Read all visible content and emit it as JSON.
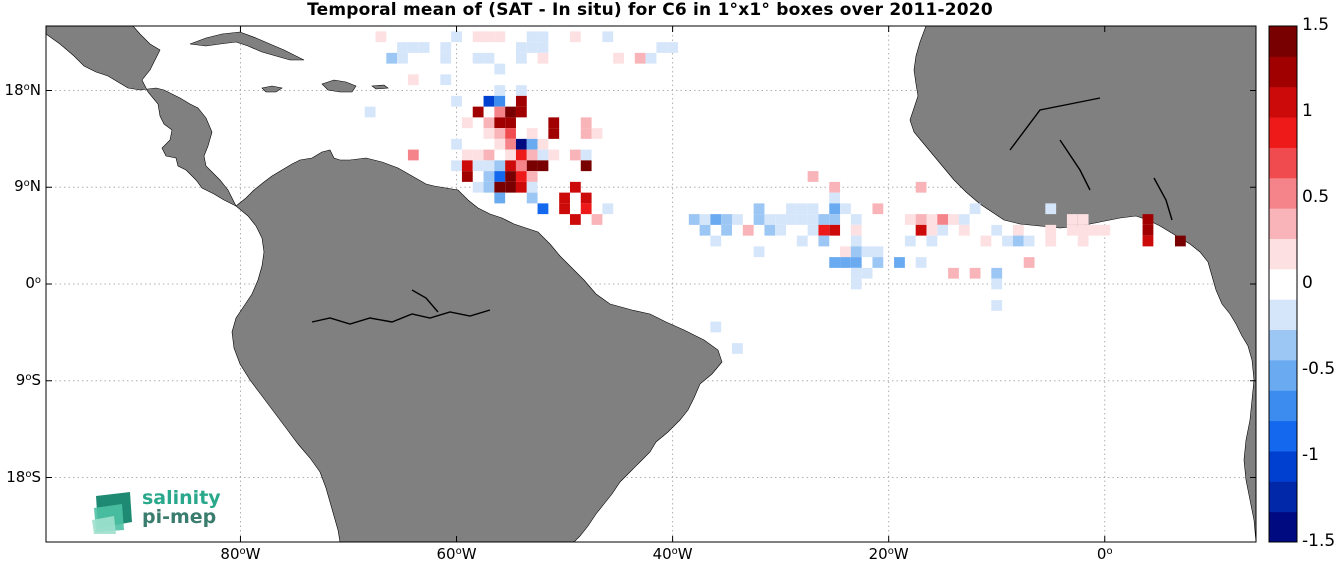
{
  "title": "Temporal mean of (SAT - In situ) for C6 in 1°x1° boxes over 2011-2020",
  "lat_ticks": [
    {
      "value": 18,
      "deg": "18",
      "hem": "N"
    },
    {
      "value": 9,
      "deg": "9",
      "hem": "N"
    },
    {
      "value": 0,
      "deg": "0",
      "hem": ""
    },
    {
      "value": -9,
      "deg": "9",
      "hem": "S"
    },
    {
      "value": -18,
      "deg": "18",
      "hem": "S"
    }
  ],
  "lon_ticks": [
    {
      "value": -80,
      "deg": "80",
      "hem": "W"
    },
    {
      "value": -60,
      "deg": "60",
      "hem": "W"
    },
    {
      "value": -40,
      "deg": "40",
      "hem": "W"
    },
    {
      "value": -20,
      "deg": "20",
      "hem": "W"
    },
    {
      "value": 0,
      "deg": "0",
      "hem": ""
    }
  ],
  "colorbar": {
    "min": -1.5,
    "max": 1.5,
    "ticks": [
      {
        "value": 1.5,
        "label": "1.5"
      },
      {
        "value": 1,
        "label": "1"
      },
      {
        "value": 0.5,
        "label": "0.5"
      },
      {
        "value": 0,
        "label": "0"
      },
      {
        "value": -0.5,
        "label": "-0.5"
      },
      {
        "value": -1,
        "label": "-1"
      },
      {
        "value": -1.5,
        "label": "-1.5"
      }
    ],
    "colors_neg_to_pos": [
      "#000a80",
      "#0028a8",
      "#0040d0",
      "#1468ee",
      "#3c8cf0",
      "#6aaaf0",
      "#9cc6f4",
      "#d6e6fa",
      "#ffffff",
      "#fde0e2",
      "#f8b4b8",
      "#f4848a",
      "#f04c50",
      "#ee1a1a",
      "#cc0a0a",
      "#a00000",
      "#780000"
    ]
  },
  "map": {
    "lon_range": [
      -98,
      14
    ],
    "lat_range": [
      -24,
      24
    ],
    "land_color": "#808080",
    "ocean_color": "#ffffff",
    "grid": true
  },
  "logo": {
    "line1": "salinity",
    "line2": "pi-mep"
  },
  "chart_data": {
    "type": "heatmap",
    "title": "Temporal mean of (SAT - In situ) for C6 in 1°x1° boxes over 2011-2020",
    "x_unit": "longitude (deg E)",
    "y_unit": "latitude (deg N)",
    "cell_size_deg": 1,
    "clim": [
      -1.5,
      1.5
    ],
    "cells": [
      [
        -67,
        23,
        0.15
      ],
      [
        -60,
        23,
        -0.1
      ],
      [
        -58,
        23,
        0.2
      ],
      [
        -57,
        23,
        0.2
      ],
      [
        -56,
        23,
        0.15
      ],
      [
        -53,
        23,
        -0.15
      ],
      [
        -52,
        23,
        -0.2
      ],
      [
        -49,
        23,
        0.2
      ],
      [
        -46,
        23,
        -0.1
      ],
      [
        -65,
        22,
        -0.15
      ],
      [
        -64,
        22,
        -0.2
      ],
      [
        -63,
        22,
        -0.1
      ],
      [
        -61,
        22,
        -0.15
      ],
      [
        -54,
        22,
        -0.1
      ],
      [
        -53,
        22,
        -0.2
      ],
      [
        -52,
        22,
        -0.15
      ],
      [
        -41,
        22,
        -0.15
      ],
      [
        -40,
        22,
        -0.15
      ],
      [
        -66,
        21,
        -0.35
      ],
      [
        -65,
        21,
        -0.1
      ],
      [
        -61,
        21,
        -0.1
      ],
      [
        -58,
        21,
        -0.2
      ],
      [
        -57,
        21,
        -0.1
      ],
      [
        -54,
        21,
        -0.1
      ],
      [
        -52,
        21,
        0.15
      ],
      [
        -45,
        21,
        0.2
      ],
      [
        -43,
        21,
        0.4
      ],
      [
        -42,
        21,
        -0.1
      ],
      [
        -56,
        20,
        -0.15
      ],
      [
        -61,
        19,
        -0.2
      ],
      [
        -64,
        19,
        0.15
      ],
      [
        -56,
        18,
        -0.1
      ],
      [
        -54,
        18,
        -0.15
      ],
      [
        -57,
        17,
        -1.0
      ],
      [
        -56,
        17,
        -0.7
      ],
      [
        -54,
        17,
        1.2
      ],
      [
        -60,
        17,
        -0.1
      ],
      [
        -68,
        16,
        -0.15
      ],
      [
        -58,
        16,
        1.2
      ],
      [
        -56,
        16,
        0.6
      ],
      [
        -55,
        16,
        1.4
      ],
      [
        -54,
        16,
        1.3
      ],
      [
        -59,
        15,
        0.2
      ],
      [
        -57,
        15,
        0.3
      ],
      [
        -56,
        15,
        1.3
      ],
      [
        -55,
        15,
        1.3
      ],
      [
        -51,
        15,
        1.3
      ],
      [
        -48,
        15,
        0.35
      ],
      [
        -57,
        14,
        0.2
      ],
      [
        -56,
        14,
        0.35
      ],
      [
        -55,
        14,
        0.7
      ],
      [
        -53,
        14,
        0.2
      ],
      [
        -51,
        14,
        1.3
      ],
      [
        -48,
        14,
        0.4
      ],
      [
        -47,
        14,
        0.2
      ],
      [
        -60,
        13,
        -0.2
      ],
      [
        -56,
        13,
        0.2
      ],
      [
        -55,
        13,
        0.6
      ],
      [
        -54,
        13,
        -1.4
      ],
      [
        -53,
        13,
        -0.6
      ],
      [
        -52,
        13,
        0.15
      ],
      [
        -64,
        12,
        0.6
      ],
      [
        -59,
        12,
        0.15
      ],
      [
        -58,
        12,
        0.2
      ],
      [
        -57,
        12,
        0.3
      ],
      [
        -55,
        12,
        0.15
      ],
      [
        -54,
        12,
        0.8
      ],
      [
        -53,
        12,
        0.35
      ],
      [
        -52,
        12,
        -0.1
      ],
      [
        -51,
        12,
        0.25
      ],
      [
        -49,
        12,
        0.3
      ],
      [
        -48,
        12,
        -0.1
      ],
      [
        -60,
        11,
        -0.1
      ],
      [
        -59,
        11,
        1.0
      ],
      [
        -58,
        11,
        -0.2
      ],
      [
        -57,
        11,
        -0.1
      ],
      [
        -56,
        11,
        -0.3
      ],
      [
        -55,
        11,
        1.1
      ],
      [
        -54,
        11,
        0.6
      ],
      [
        -53,
        11,
        1.4
      ],
      [
        -52,
        11,
        1.4
      ],
      [
        -48,
        11,
        1.4
      ],
      [
        -59,
        10,
        1.3
      ],
      [
        -57,
        10,
        -0.3
      ],
      [
        -56,
        10,
        -0.8
      ],
      [
        -55,
        10,
        1.4
      ],
      [
        -54,
        10,
        0.9
      ],
      [
        -53,
        10,
        0.3
      ],
      [
        -27,
        10,
        0.3
      ],
      [
        -58,
        9,
        -0.15
      ],
      [
        -57,
        9,
        -0.3
      ],
      [
        -56,
        9,
        1.4
      ],
      [
        -55,
        9,
        1.4
      ],
      [
        -54,
        9,
        1.1
      ],
      [
        -53,
        9,
        -0.2
      ],
      [
        -49,
        9,
        1.0
      ],
      [
        -25,
        9,
        0.4
      ],
      [
        -17,
        9,
        0.3
      ],
      [
        -56,
        8,
        -0.5
      ],
      [
        -53,
        8,
        -0.3
      ],
      [
        -50,
        8,
        1.0
      ],
      [
        -48,
        8,
        1.0
      ],
      [
        -25,
        8,
        -0.2
      ],
      [
        -52,
        7,
        -0.85
      ],
      [
        -50,
        7,
        1.0
      ],
      [
        -48,
        7,
        0.95
      ],
      [
        -46,
        7,
        -0.2
      ],
      [
        -32,
        7,
        -0.3
      ],
      [
        -29,
        7,
        -0.15
      ],
      [
        -28,
        7,
        -0.15
      ],
      [
        -27,
        7,
        -0.2
      ],
      [
        -25,
        7,
        -0.45
      ],
      [
        -24,
        7,
        -0.15
      ],
      [
        -21,
        7,
        0.3
      ],
      [
        -12,
        7,
        -0.15
      ],
      [
        -5,
        7,
        -0.1
      ],
      [
        -49,
        6,
        1.0
      ],
      [
        -47,
        6,
        0.4
      ],
      [
        -38,
        6,
        -0.3
      ],
      [
        -37,
        6,
        -0.15
      ],
      [
        -36,
        6,
        -0.55
      ],
      [
        -35,
        6,
        -0.3
      ],
      [
        -34,
        6,
        -0.2
      ],
      [
        -32,
        6,
        -0.3
      ],
      [
        -31,
        6,
        -0.2
      ],
      [
        -30,
        6,
        -0.15
      ],
      [
        -29,
        6,
        -0.2
      ],
      [
        -28,
        6,
        -0.15
      ],
      [
        -27,
        6,
        -0.15
      ],
      [
        -26,
        6,
        -0.3
      ],
      [
        -25,
        6,
        -0.3
      ],
      [
        -23,
        6,
        -0.1
      ],
      [
        -18,
        6,
        0.2
      ],
      [
        -17,
        6,
        0.3
      ],
      [
        -16,
        6,
        0.25
      ],
      [
        -15,
        6,
        0.5
      ],
      [
        -14,
        6,
        0.2
      ],
      [
        -13,
        6,
        -0.1
      ],
      [
        -3,
        6,
        0.2
      ],
      [
        -2,
        6,
        0.25
      ],
      [
        4,
        6,
        1.3
      ],
      [
        -37,
        5,
        -0.3
      ],
      [
        -35,
        5,
        -0.3
      ],
      [
        -33,
        5,
        0.35
      ],
      [
        -31,
        5,
        -0.3
      ],
      [
        -30,
        5,
        -0.2
      ],
      [
        -27,
        5,
        -0.2
      ],
      [
        -26,
        5,
        0.9
      ],
      [
        -25,
        5,
        1.0
      ],
      [
        -23,
        5,
        0.2
      ],
      [
        -17,
        5,
        1.0
      ],
      [
        -16,
        5,
        0.25
      ],
      [
        -15,
        5,
        -0.1
      ],
      [
        -13,
        5,
        0.2
      ],
      [
        -10,
        5,
        -0.1
      ],
      [
        -8,
        5,
        0.1
      ],
      [
        -5,
        5,
        0.1
      ],
      [
        -3,
        5,
        0.1
      ],
      [
        -2,
        5,
        0.2
      ],
      [
        -1,
        5,
        0.15
      ],
      [
        0,
        5,
        0.1
      ],
      [
        4,
        5,
        1.2
      ],
      [
        -36,
        4,
        -0.15
      ],
      [
        -28,
        4,
        -0.25
      ],
      [
        -26,
        4,
        -0.3
      ],
      [
        -23,
        4,
        -0.2
      ],
      [
        -18,
        4,
        -0.15
      ],
      [
        -16,
        4,
        -0.1
      ],
      [
        -11,
        4,
        0.15
      ],
      [
        -9,
        4,
        -0.2
      ],
      [
        -8,
        4,
        -0.3
      ],
      [
        -7,
        4,
        -0.1
      ],
      [
        -5,
        4,
        0.2
      ],
      [
        -2,
        4,
        0.1
      ],
      [
        4,
        4,
        1.0
      ],
      [
        7,
        4,
        1.4
      ],
      [
        -32,
        3,
        -0.1
      ],
      [
        -24,
        3,
        0.2
      ],
      [
        -23,
        3,
        -0.3
      ],
      [
        -22,
        3,
        -0.15
      ],
      [
        -21,
        3,
        -0.1
      ],
      [
        -25,
        2,
        -0.5
      ],
      [
        -24,
        2,
        -0.55
      ],
      [
        -23,
        2,
        -0.5
      ],
      [
        -21,
        2,
        -0.3
      ],
      [
        -19,
        2,
        -0.5
      ],
      [
        -17,
        2,
        -0.2
      ],
      [
        -7,
        2,
        0.3
      ],
      [
        -23,
        1,
        -0.25
      ],
      [
        -22,
        1,
        -0.2
      ],
      [
        -14,
        1,
        0.3
      ],
      [
        -12,
        1,
        0.3
      ],
      [
        -10,
        1,
        -0.4
      ],
      [
        -23,
        0,
        -0.15
      ],
      [
        -10,
        0,
        -0.2
      ],
      [
        -10,
        -2,
        -0.2
      ],
      [
        -36,
        -4,
        -0.25
      ],
      [
        -34,
        -6,
        -0.15
      ]
    ]
  }
}
